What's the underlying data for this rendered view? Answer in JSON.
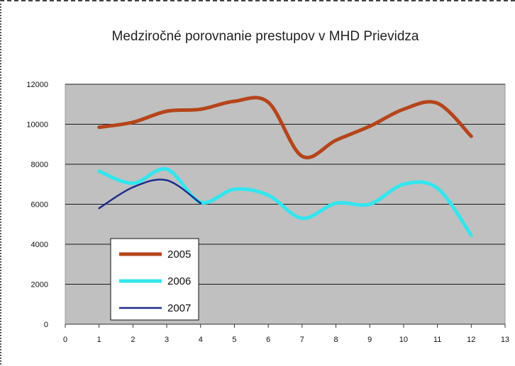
{
  "chart_data": {
    "type": "line",
    "title": "Medziročné porovnanie prestupov v MHD Prievidza",
    "xlabel": "",
    "ylabel": "",
    "xlim": [
      0,
      13
    ],
    "ylim": [
      0,
      12000
    ],
    "x_ticks": [
      "0",
      "1",
      "2",
      "3",
      "4",
      "5",
      "6",
      "7",
      "8",
      "9",
      "10",
      "11",
      "12",
      "13"
    ],
    "y_ticks": [
      "0",
      "2000",
      "4000",
      "6000",
      "8000",
      "10000",
      "12000"
    ],
    "grid": true,
    "legend_position": "bottom-left",
    "series": [
      {
        "name": "2005",
        "color": "#b5451b",
        "x": [
          1,
          2,
          3,
          4,
          5,
          6,
          7,
          8,
          9,
          10,
          11,
          12
        ],
        "values": [
          9850,
          10100,
          10650,
          10750,
          11150,
          11100,
          8400,
          9200,
          9900,
          10750,
          11050,
          9400
        ]
      },
      {
        "name": "2006",
        "color": "#33e6ee",
        "x": [
          1,
          2,
          3,
          4,
          5,
          6,
          7,
          8,
          9,
          10,
          11,
          12
        ],
        "values": [
          7650,
          7050,
          7750,
          6100,
          6750,
          6450,
          5300,
          6050,
          6000,
          7000,
          6800,
          4450
        ]
      },
      {
        "name": "2007",
        "color": "#1f2d8a",
        "x": [
          1,
          2,
          3,
          4
        ],
        "values": [
          5800,
          6850,
          7200,
          6050
        ]
      }
    ]
  }
}
